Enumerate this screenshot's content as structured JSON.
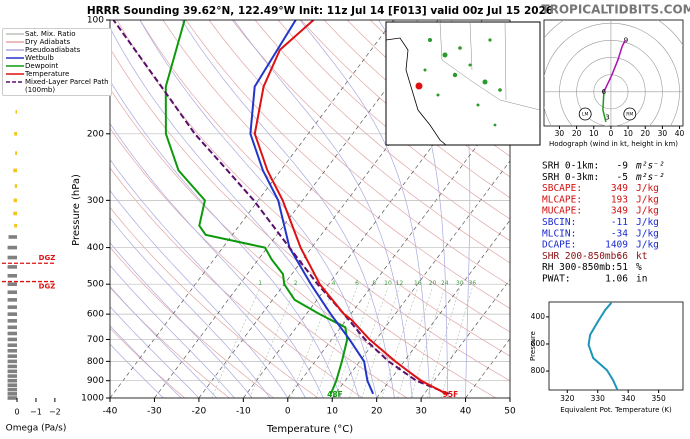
{
  "site": "TROPICALTIDBITS.COM",
  "chart_data": [
    {
      "type": "skewt",
      "title": "HRRR Sounding 39.62°N, 122.49°W Init: 11z Jul 14 [F013] valid 00z Jul 15 2026",
      "xlabel": "Temperature (°C)",
      "ylabel": "Pressure (hPa)",
      "xlim": [
        -40,
        50
      ],
      "xticks": [
        -40,
        -30,
        -20,
        -10,
        0,
        10,
        20,
        30,
        40,
        50
      ],
      "ylim": [
        1000,
        100
      ],
      "yticks": [
        100,
        200,
        300,
        400,
        500,
        600,
        700,
        800,
        900,
        1000
      ],
      "log_y": true,
      "reference_lines": [
        {
          "name": "Sat. Mix. Ratio",
          "color": "#b8c4b8"
        },
        {
          "name": "Dry Adiabats",
          "color": "#e3a6a6"
        },
        {
          "name": "Pseudoadiabats",
          "color": "#a9a9e0"
        }
      ],
      "mixing_ratios": [
        1,
        2,
        4,
        6,
        8,
        10,
        12,
        16,
        20,
        24,
        30,
        36
      ],
      "series": [
        {
          "name": "Wetbulb",
          "color": "#2236c8",
          "dash": false,
          "pressure": [
            975,
            900,
            800,
            700,
            600,
            500,
            400,
            300,
            250,
            200,
            150,
            100
          ],
          "values": [
            18.5,
            15,
            11,
            4,
            -4.5,
            -14,
            -25,
            -35.5,
            -44,
            -53,
            -60,
            -62
          ]
        },
        {
          "name": "Dewpoint",
          "color": "#0b9a0b",
          "dash": false,
          "surface_label": "48F",
          "pressure": [
            975,
            900,
            800,
            700,
            650,
            600,
            550,
            500,
            470,
            430,
            400,
            370,
            350,
            300,
            250,
            200,
            150,
            100
          ],
          "values": [
            9,
            8,
            6,
            3.5,
            1,
            -7,
            -15,
            -20,
            -22,
            -27,
            -30.5,
            -46,
            -49,
            -52,
            -63,
            -72,
            -80,
            -87
          ]
        },
        {
          "name": "Temperature",
          "color": "#dd1111",
          "dash": false,
          "surface_label": "95F",
          "pressure": [
            975,
            900,
            800,
            700,
            620,
            600,
            500,
            400,
            300,
            250,
            200,
            150,
            120,
            100
          ],
          "values": [
            35,
            27,
            18,
            8.5,
            1,
            -1.5,
            -12,
            -22.5,
            -34.5,
            -43,
            -52,
            -58,
            -60.5,
            -58
          ]
        },
        {
          "name": "Mixed-Layer Parcel Path (100mb)",
          "color": "#5a0f6e",
          "dash": true,
          "pressure": [
            975,
            900,
            800,
            700,
            600,
            500,
            400,
            300,
            250,
            200,
            150,
            100
          ],
          "values": [
            35.5,
            26,
            16.5,
            7.5,
            -1.5,
            -12.5,
            -25,
            -41,
            -52,
            -65.5,
            -81,
            -103
          ]
        }
      ]
    },
    {
      "type": "hodograph",
      "xlabel": "Hodograph (wind in kt, height in km)",
      "xlim": [
        -39,
        42
      ],
      "ylim": [
        -20,
        42
      ],
      "xticks": [
        {
          "value": -30,
          "label": "30"
        },
        {
          "value": -20,
          "label": "20"
        },
        {
          "value": -10,
          "label": "10"
        },
        0,
        10,
        20,
        30,
        40
      ],
      "series": [
        {
          "color": "#1f9a1f",
          "u": [
            -2.9,
            -4.7,
            -4.1
          ],
          "v": [
            -17.6,
            -10.6,
            0
          ]
        },
        {
          "color": "#b010b0",
          "u": [
            -4.1,
            0.6,
            4.1,
            6.5,
            8.2
          ],
          "v": [
            0,
            10,
            18.8,
            26.5,
            30
          ]
        }
      ],
      "height_labels": [
        {
          "label": "3",
          "u": -2,
          "v": -15
        },
        {
          "label": "6",
          "u": -4.1,
          "v": 0
        },
        {
          "label": "9",
          "u": 8.8,
          "v": 30
        }
      ],
      "storm_motion": [
        {
          "label": "LM",
          "u": -15,
          "v": -13
        },
        {
          "label": "RM",
          "u": 11,
          "v": -13
        }
      ]
    },
    {
      "type": "line",
      "xlabel": "Equivalent Pot. Temperature (K)",
      "ylabel": "Pressure",
      "xlim": [
        314,
        358
      ],
      "xticks": [
        320,
        330,
        340,
        350
      ],
      "ylim": [
        940,
        290
      ],
      "yticks": [
        400,
        600,
        800
      ],
      "color": "#1c95b8",
      "values": [
        336.5,
        335,
        333,
        328.5,
        327,
        327.5,
        330,
        332.5,
        334.5
      ],
      "pressure": [
        940,
        866,
        793,
        704,
        607,
        533,
        437,
        348,
        296
      ]
    },
    {
      "type": "bar",
      "orientation": "horizontal",
      "xlabel": "Omega (Pa/s)",
      "xlim": [
        0.9,
        -2.8
      ],
      "xticks": [
        0,
        {
          "value": -1,
          "label": "−1"
        },
        {
          "value": -2,
          "label": "−2"
        }
      ],
      "ylim": [
        1000,
        100
      ],
      "log_y": true,
      "pressure": [
        125,
        150,
        175,
        200,
        225,
        250,
        275,
        300,
        325,
        350,
        375,
        400,
        425,
        450,
        475,
        500,
        525,
        550,
        575,
        600,
        625,
        650,
        675,
        700,
        725,
        750,
        775,
        800,
        825,
        850,
        875,
        900,
        925,
        950,
        975,
        1000
      ],
      "values": [
        0.05,
        0.12,
        0.08,
        0.15,
        0.1,
        0.2,
        0.12,
        0.18,
        0.2,
        0.15,
        0.45,
        0.5,
        0.5,
        0.5,
        0.5,
        0.5,
        0.5,
        0.5,
        0.5,
        0.5,
        0.5,
        0.5,
        0.5,
        0.5,
        0.5,
        0.5,
        0.5,
        0.5,
        0.5,
        0.5,
        0.5,
        0.5,
        0.5,
        0.5,
        0.5,
        0.5
      ],
      "colors": [
        "#f5c518",
        "#f5c518",
        "#f5c518",
        "#f5c518",
        "#f5c518",
        "#f5c518",
        "#f5c518",
        "#f5c518",
        "#f5c518",
        "#f5c518",
        "#808080",
        "#808080",
        "#808080",
        "#808080",
        "#808080",
        "#808080",
        "#808080",
        "#808080",
        "#808080",
        "#808080",
        "#808080",
        "#808080",
        "#808080",
        "#808080",
        "#808080",
        "#808080",
        "#808080",
        "#808080",
        "#808080",
        "#808080",
        "#808080",
        "#808080",
        "#808080",
        "#808080",
        "#808080",
        "#808080"
      ],
      "dgz": [
        {
          "pressure": 440,
          "label": "DGZ"
        },
        {
          "pressure": 492,
          "label": "DGZ"
        }
      ]
    }
  ],
  "params": [
    {
      "label": "SRH 0-1km:",
      "value": -9,
      "unit": "m²s⁻²",
      "color": "#000000"
    },
    {
      "label": "SRH 0-3km:",
      "value": -5,
      "unit": "m²s⁻²",
      "color": "#000000"
    },
    {
      "label": "SBCAPE:",
      "value": 349,
      "unit": "J/kg",
      "color": "#d01010"
    },
    {
      "label": "MLCAPE:",
      "value": 193,
      "unit": "J/kg",
      "color": "#d01010"
    },
    {
      "label": "MUCAPE:",
      "value": 349,
      "unit": "J/kg",
      "color": "#d01010"
    },
    {
      "label": "SBCIN:",
      "value": -11,
      "unit": "J/kg",
      "color": "#1a2ad0"
    },
    {
      "label": "MLCIN:",
      "value": -34,
      "unit": "J/kg",
      "color": "#1a2ad0"
    },
    {
      "label": "DCAPE:",
      "value": 1409,
      "unit": "J/kg",
      "color": "#1a2ad0"
    },
    {
      "label": "SHR 200-850mb:",
      "value": 66,
      "unit": "kt",
      "color": "#8b1010"
    },
    {
      "label": "RH 300-850mb:",
      "value": 51,
      "unit": "%",
      "color": "#000000"
    },
    {
      "label": "PWAT:",
      "value": 1.06,
      "unit": "in",
      "color": "#000000"
    }
  ]
}
